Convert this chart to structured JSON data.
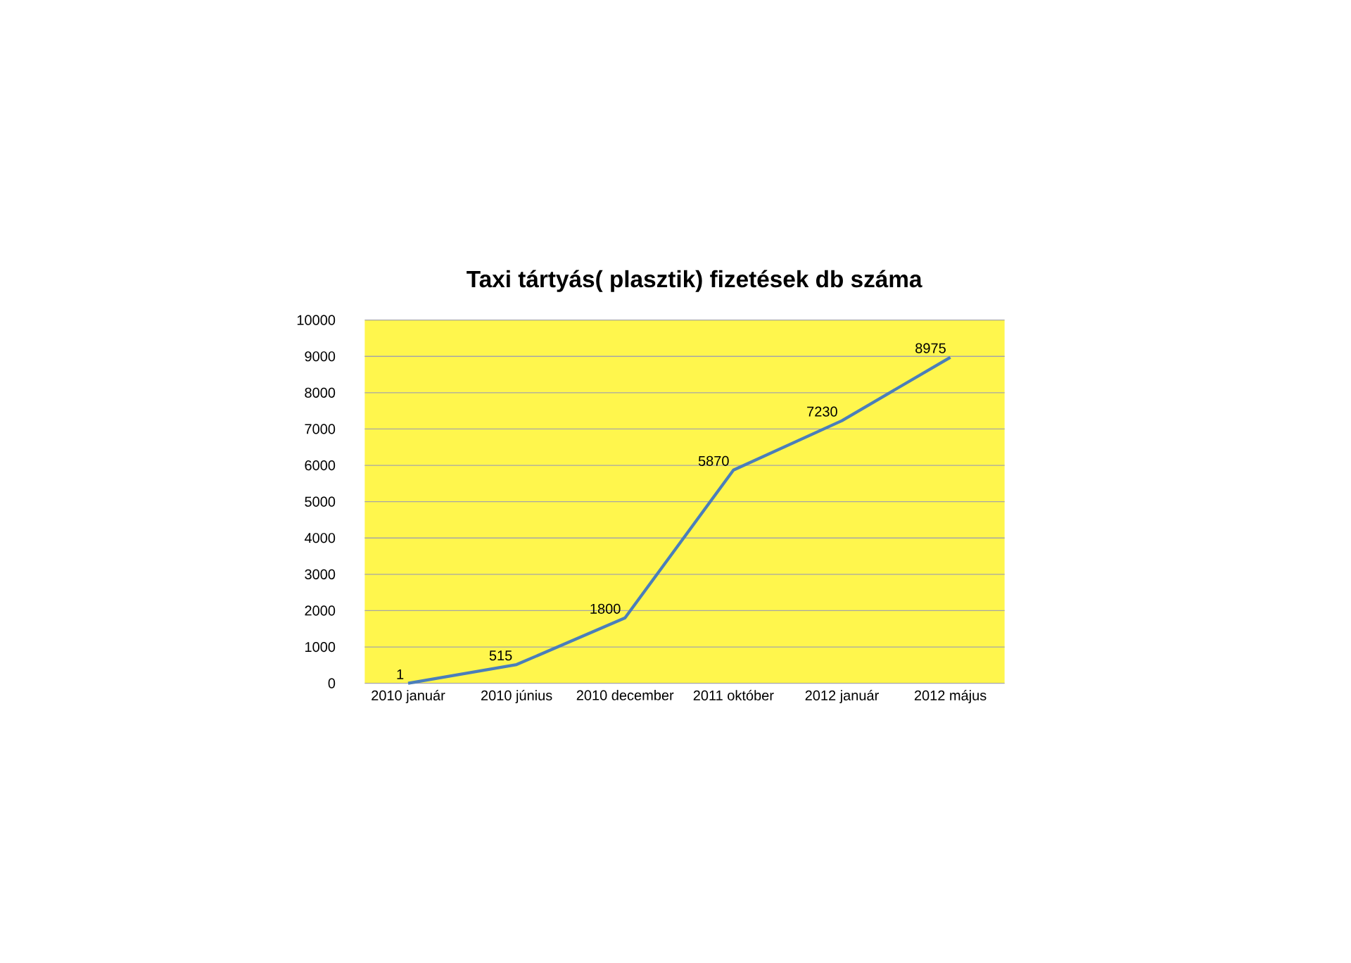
{
  "chart_data": {
    "type": "line",
    "title": "Taxi tártyás( plasztik) fizetések db száma",
    "categories": [
      "2010 január",
      "2010 június",
      "2010 december",
      "2011 október",
      "2012 január",
      "2012 május"
    ],
    "values": [
      1,
      515,
      1800,
      5870,
      7230,
      8975
    ],
    "color": "#4a7ebb",
    "ylim": [
      0,
      10000
    ],
    "yticks": [
      0,
      1000,
      2000,
      3000,
      4000,
      5000,
      6000,
      7000,
      8000,
      9000,
      10000
    ],
    "grid": "y",
    "data_labels": true,
    "marker": "none",
    "line_style": "solid"
  }
}
